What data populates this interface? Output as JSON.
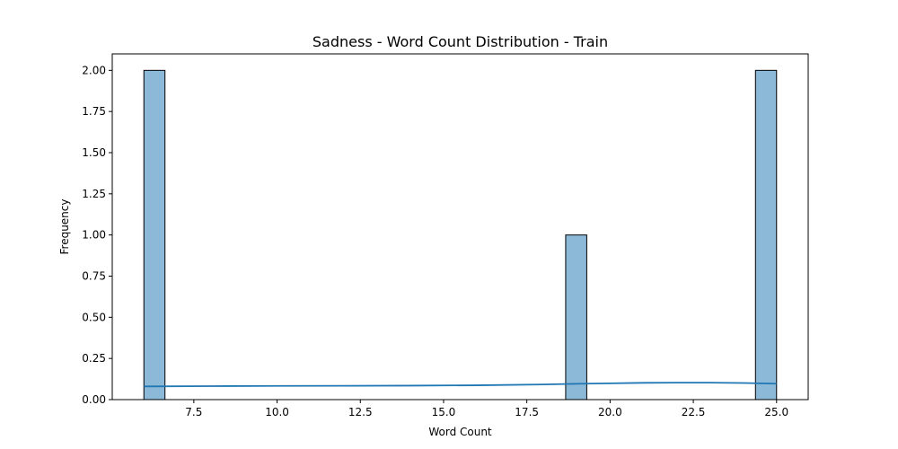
{
  "chart_data": {
    "type": "bar",
    "subtype": "histogram-with-kde",
    "title": "Sadness - Word Count Distribution - Train",
    "xlabel": "Word Count",
    "ylabel": "Frequency",
    "xlim": [
      5.05,
      25.95
    ],
    "ylim": [
      0,
      2.1
    ],
    "bin_width": 0.6333,
    "bars": [
      {
        "x0": 6.0,
        "x1": 6.6333,
        "value": 2
      },
      {
        "x0": 18.6667,
        "x1": 19.3,
        "value": 1
      },
      {
        "x0": 24.3667,
        "x1": 25.0,
        "value": 2
      }
    ],
    "kde": {
      "x": [
        6.0,
        8.0,
        10.0,
        12.0,
        14.0,
        16.0,
        18.0,
        19.0,
        20.0,
        21.0,
        22.0,
        23.0,
        24.0,
        25.0
      ],
      "y": [
        0.08,
        0.082,
        0.083,
        0.084,
        0.085,
        0.087,
        0.092,
        0.096,
        0.099,
        0.102,
        0.103,
        0.103,
        0.101,
        0.097
      ]
    },
    "x_ticks": [
      "7.5",
      "10.0",
      "12.5",
      "15.0",
      "17.5",
      "20.0",
      "22.5",
      "25.0"
    ],
    "x_tick_values": [
      7.5,
      10.0,
      12.5,
      15.0,
      17.5,
      20.0,
      22.5,
      25.0
    ],
    "y_ticks": [
      "0.00",
      "0.25",
      "0.50",
      "0.75",
      "1.00",
      "1.25",
      "1.50",
      "1.75",
      "2.00"
    ],
    "y_tick_values": [
      0,
      0.25,
      0.5,
      0.75,
      1.0,
      1.25,
      1.5,
      1.75,
      2.0
    ],
    "grid": false,
    "colors": {
      "bar_fill": "#8db9d8",
      "bar_edge": "#000000",
      "kde_line": "#1f77b4",
      "axes": "#000000"
    }
  }
}
